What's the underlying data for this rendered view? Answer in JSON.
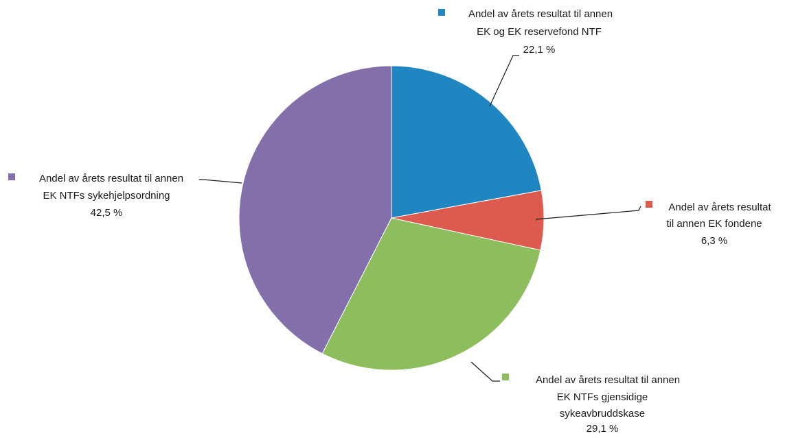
{
  "chart_data": {
    "type": "pie",
    "start_angle_deg": 0,
    "direction": "clockwise",
    "slices": [
      {
        "name": "Andel av årets resultat til annen EK og EK reservefond NTF",
        "label_lines": [
          "Andel av årets resultat  til annen",
          "EK og EK reservefond NTF"
        ],
        "value": 22.1,
        "value_label": "22,1 %",
        "color": "#1f86c2"
      },
      {
        "name": "Andel av årets resultat til annen EK fondene",
        "label_lines": [
          "Andel av årets resultat",
          "til annen EK fondene"
        ],
        "value": 6.3,
        "value_label": "6,3 %",
        "color": "#dd5a4f"
      },
      {
        "name": "Andel av årets resultat til annen EK NTFs gjensidige sykeavbruddskase",
        "label_lines": [
          "Andel av årets resultat til annen",
          "EK NTFs gjensidige",
          "sykeavbruddskase"
        ],
        "value": 29.1,
        "value_label": "29,1 %",
        "color": "#8dbd5c"
      },
      {
        "name": "Andel av årets resultat til annen EK NTFs sykehjelpsordning",
        "label_lines": [
          "Andel av årets resultat til annen",
          "EK NTFs sykehjelpsordning"
        ],
        "value": 42.5,
        "value_label": "42,5 %",
        "color": "#836fa9"
      }
    ],
    "legend": "callout-labels",
    "grid": false
  }
}
